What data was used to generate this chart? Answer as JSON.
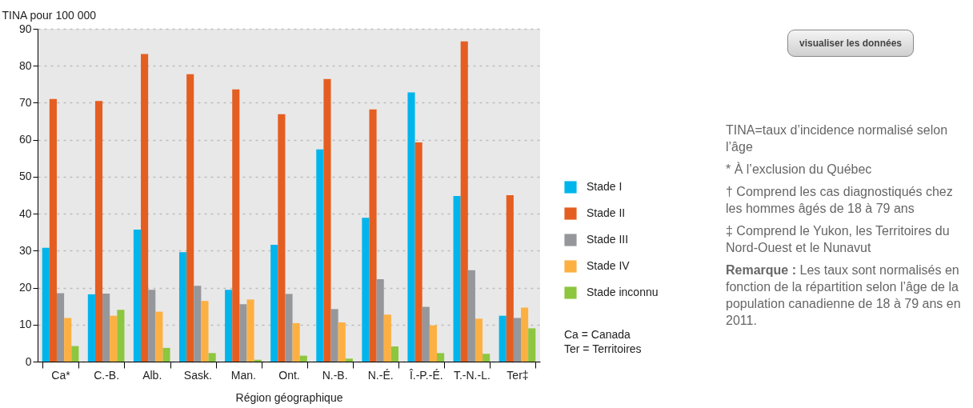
{
  "chart_data": {
    "type": "bar",
    "xlabel": "Région géographique",
    "ylabel": "TINA pour 100 000",
    "categories": [
      "Ca*",
      "C.-B.",
      "Alb.",
      "Sask.",
      "Man.",
      "Ont.",
      "N.-B.",
      "N.-É.",
      "Î.-P.-É.",
      "T.-N.-L.",
      "Ter‡"
    ],
    "series": [
      {
        "name": "Stade I",
        "color": "#00b5ec",
        "values": [
          30.8,
          18.2,
          35.7,
          29.6,
          19.4,
          31.6,
          57.4,
          38.9,
          72.8,
          44.8,
          12.4
        ]
      },
      {
        "name": "Stade II",
        "color": "#e55e21",
        "values": [
          71,
          70.5,
          83.2,
          77.7,
          73.6,
          66.9,
          76.4,
          68.2,
          59.3,
          86.6,
          45
        ]
      },
      {
        "name": "Stade III",
        "color": "#96979b",
        "values": [
          18.5,
          18.4,
          19.4,
          20.5,
          15.5,
          18.3,
          14.2,
          22.3,
          14.8,
          24.7,
          11.8
        ]
      },
      {
        "name": "Stade IV",
        "color": "#fdb042",
        "values": [
          11.8,
          12.4,
          13.5,
          16.4,
          16.8,
          10.4,
          10.6,
          12.7,
          9.8,
          11.6,
          14.6
        ]
      },
      {
        "name": "Stade inconnu",
        "color": "#8dc63f",
        "values": [
          4.2,
          14,
          3.7,
          2.3,
          0.5,
          1.6,
          0.8,
          4.1,
          2.3,
          2.1,
          9
        ]
      }
    ],
    "ylim": [
      0,
      90
    ],
    "yticks": [
      0,
      10,
      20,
      30,
      40,
      50,
      60,
      70,
      80,
      90
    ],
    "grid": "y",
    "legend": "right",
    "annotations": [
      "visualiser les données",
      "Ca = Canada",
      "Ter = Territoires",
      "TINA=taux d’incidence normalisé selon l’âge",
      "* À l’exclusion du Québec",
      "† Comprend les cas diagnostiqués chez les hommes âgés de 18 à 79 ans",
      "‡ Comprend le Yukon, les Territoires du Nord-Ouest et le Nunavut",
      "Remarque : Les taux sont normalisés en fonction de la répartition selon l’âge de la population canadienne de 18 à 79 ans en 2011."
    ]
  }
}
